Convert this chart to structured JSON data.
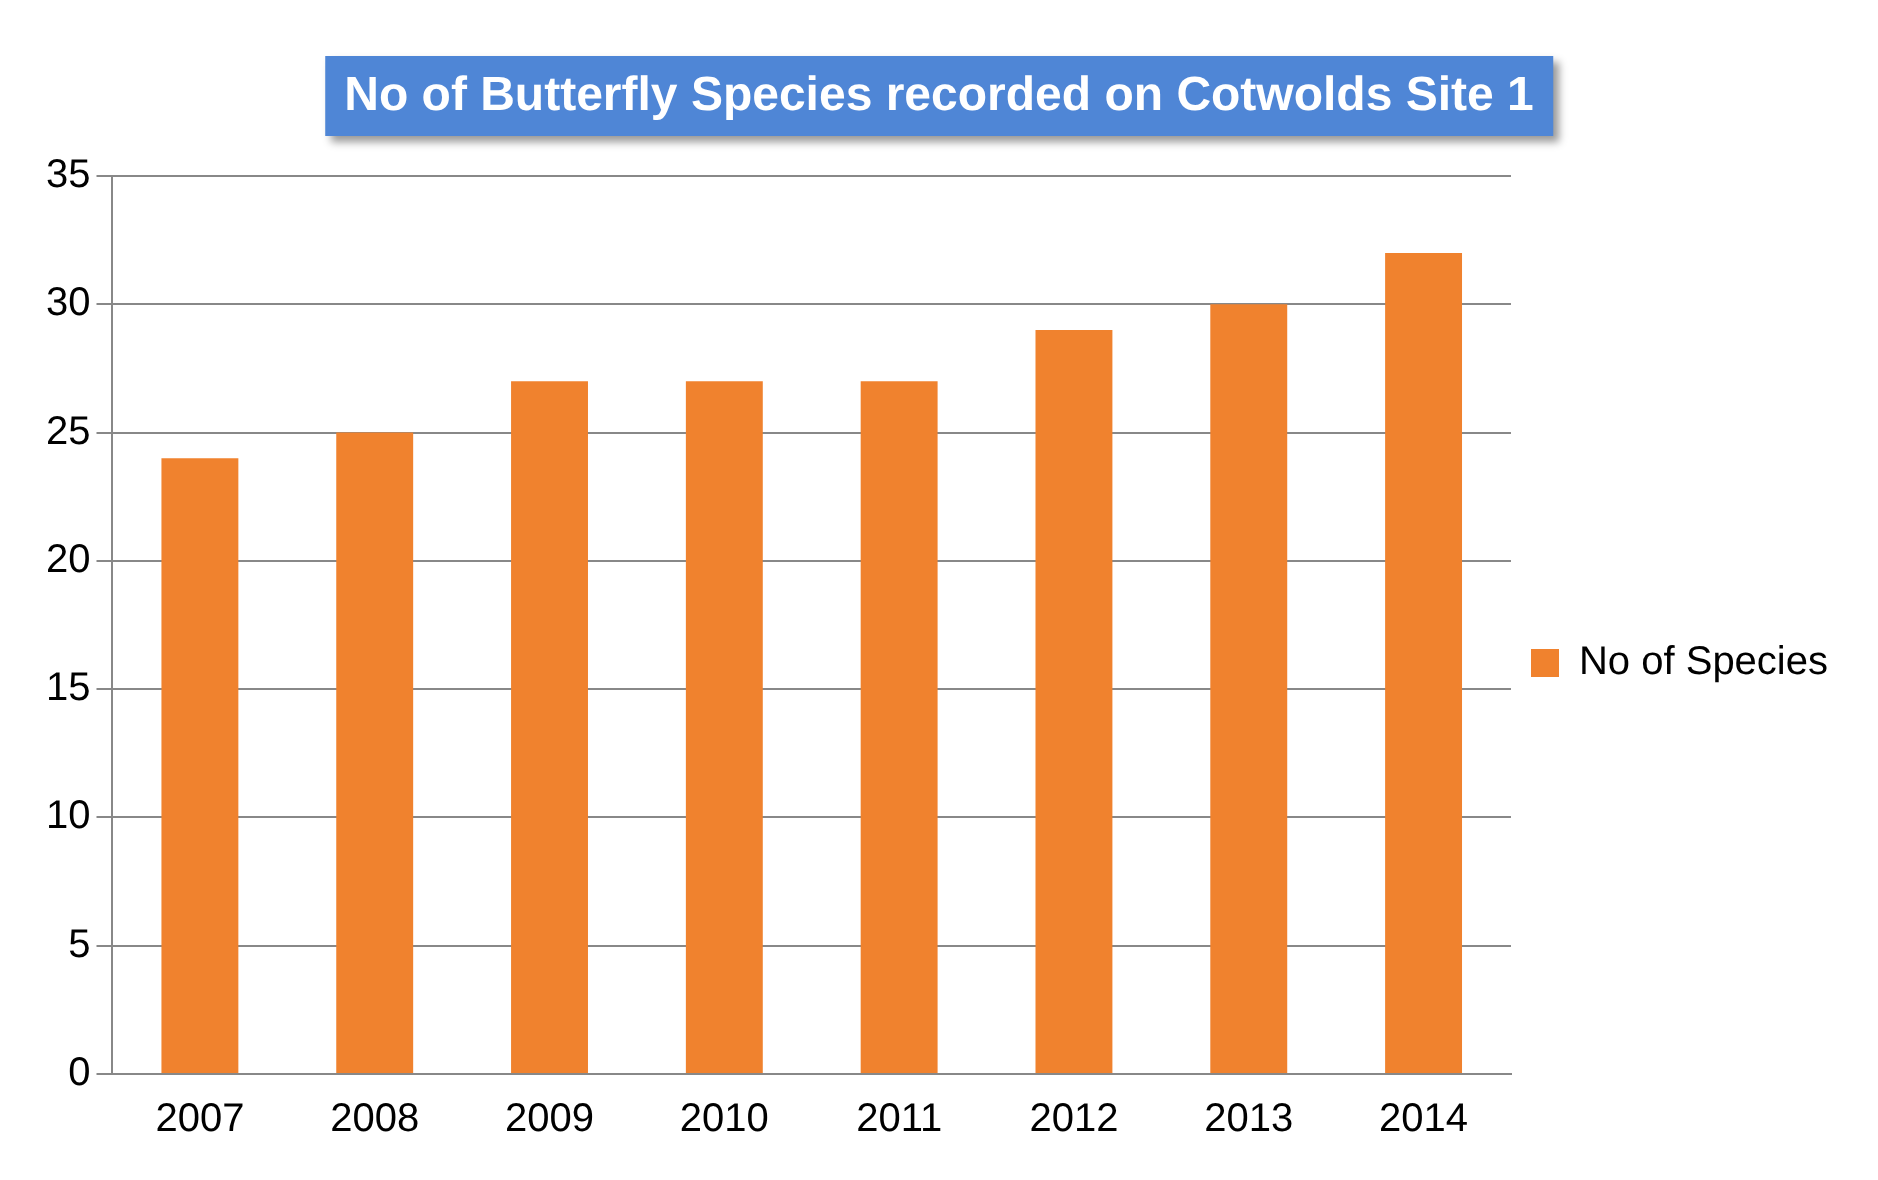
{
  "chart_data": {
    "type": "bar",
    "title": "No of Butterfly Species recorded on Cotwolds Site 1",
    "categories": [
      "2007",
      "2008",
      "2009",
      "2010",
      "2011",
      "2012",
      "2013",
      "2014"
    ],
    "series": [
      {
        "name": "No of Species",
        "color": "#f0822e",
        "values": [
          24,
          25,
          27,
          27,
          27,
          29,
          30,
          32
        ]
      }
    ],
    "ylim": [
      0,
      35
    ],
    "yticks": [
      0,
      5,
      10,
      15,
      20,
      25,
      30,
      35
    ],
    "grid": "y",
    "legend": "right"
  }
}
